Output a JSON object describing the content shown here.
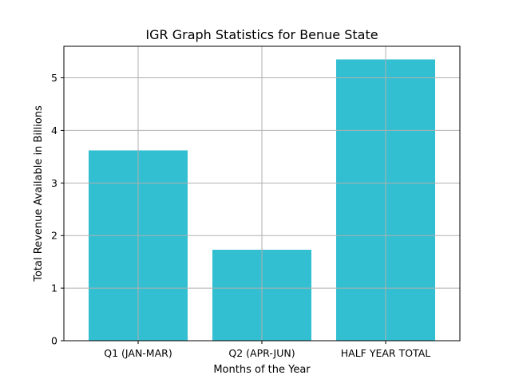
{
  "chart_data": {
    "type": "bar",
    "title": "IGR Graph Statistics for Benue State",
    "xlabel": "Months of the Year",
    "ylabel": "Total Revenue Available in Billions",
    "categories": [
      "Q1 (JAN-MAR)",
      "Q2 (APR-JUN)",
      "HALF YEAR TOTAL"
    ],
    "values": [
      3.62,
      1.73,
      5.35
    ],
    "ylim": [
      0,
      5.6
    ],
    "yticks": [
      0,
      1,
      2,
      3,
      4,
      5
    ],
    "grid": true,
    "bar_color": "#32bfd1",
    "grid_color": "#b0b0b0"
  }
}
